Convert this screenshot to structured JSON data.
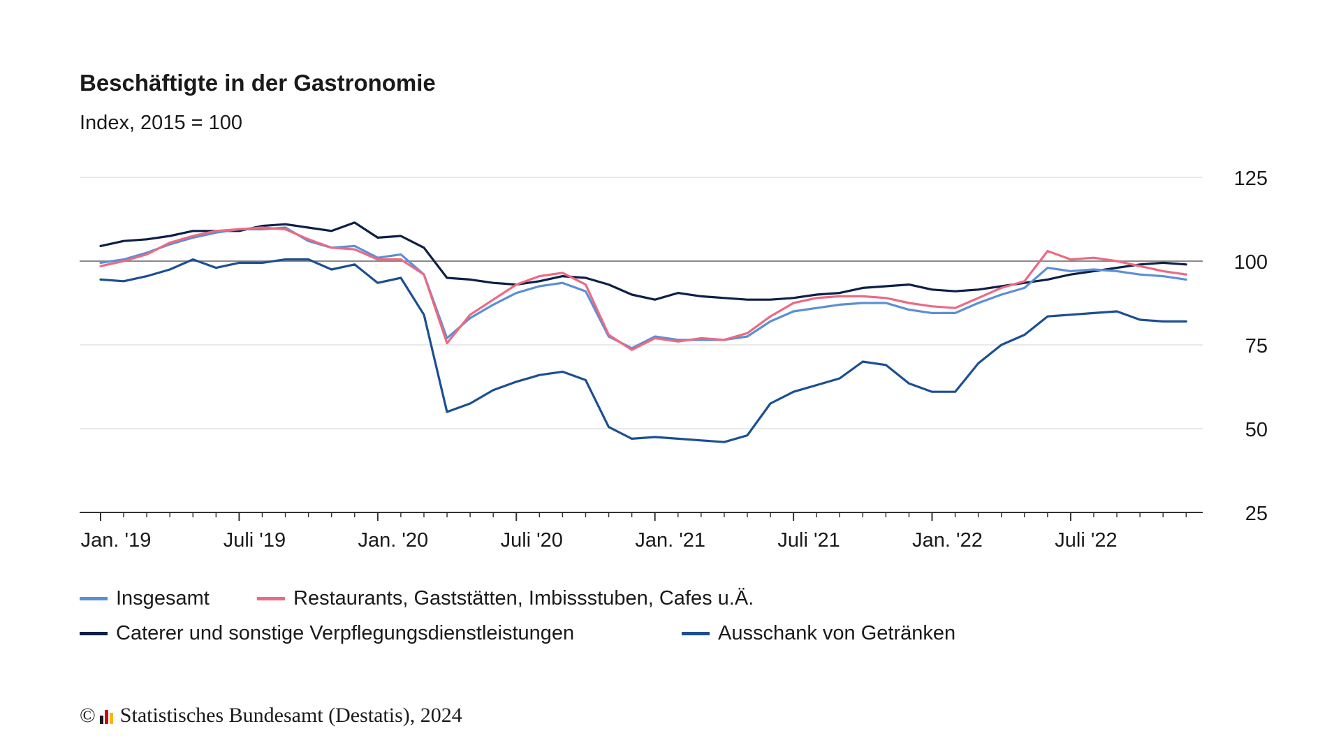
{
  "chart_data": {
    "type": "line",
    "title": "Beschäftigte in der Gastronomie",
    "subtitle": "Index, 2015 = 100",
    "xlabel": "",
    "ylabel": "",
    "ylim": [
      25,
      125
    ],
    "yticks": [
      25,
      50,
      75,
      100,
      125
    ],
    "reference_line": 100,
    "grid": true,
    "legend_position": "bottom",
    "x_months": [
      "2019-01",
      "2019-02",
      "2019-03",
      "2019-04",
      "2019-05",
      "2019-06",
      "2019-07",
      "2019-08",
      "2019-09",
      "2019-10",
      "2019-11",
      "2019-12",
      "2020-01",
      "2020-02",
      "2020-03",
      "2020-04",
      "2020-05",
      "2020-06",
      "2020-07",
      "2020-08",
      "2020-09",
      "2020-10",
      "2020-11",
      "2020-12",
      "2021-01",
      "2021-02",
      "2021-03",
      "2021-04",
      "2021-05",
      "2021-06",
      "2021-07",
      "2021-08",
      "2021-09",
      "2021-10",
      "2021-11",
      "2021-12",
      "2022-01",
      "2022-02",
      "2022-03",
      "2022-04",
      "2022-05",
      "2022-06",
      "2022-07",
      "2022-08",
      "2022-09",
      "2022-10",
      "2022-11",
      "2022-12"
    ],
    "x_tick_labels": [
      {
        "index": 0,
        "label": "Jan. '19"
      },
      {
        "index": 6,
        "label": "Juli '19"
      },
      {
        "index": 12,
        "label": "Jan. '20"
      },
      {
        "index": 18,
        "label": "Juli '20"
      },
      {
        "index": 24,
        "label": "Jan. '21"
      },
      {
        "index": 30,
        "label": "Juli '21"
      },
      {
        "index": 36,
        "label": "Jan. '22"
      },
      {
        "index": 42,
        "label": "Juli '22"
      }
    ],
    "series": [
      {
        "name": "Insgesamt",
        "color": "#5b8fd6",
        "values": [
          99.5,
          100.5,
          102.5,
          105,
          107,
          108.5,
          109.5,
          109.5,
          110,
          106,
          104,
          104.5,
          101,
          102,
          96,
          77,
          83,
          87,
          90.5,
          92.5,
          93.5,
          91,
          77.5,
          74,
          77.5,
          76.5,
          76.5,
          76.5,
          77.5,
          82,
          85,
          86,
          87,
          87.5,
          87.5,
          85.5,
          84.5,
          84.5,
          87.5,
          90,
          92,
          98,
          97,
          97.5,
          97,
          96,
          95.5,
          94.5
        ]
      },
      {
        "name": "Restaurants, Gaststätten, Imbissstuben, Cafes u.Ä.",
        "color": "#ec6a82",
        "values": [
          98.5,
          100,
          102,
          105.5,
          107.5,
          109,
          109.5,
          110,
          109.5,
          106.5,
          104,
          103.5,
          100.5,
          100.5,
          96,
          75.5,
          84,
          88.5,
          93,
          95.5,
          96.5,
          93,
          78,
          73.5,
          77,
          76,
          77,
          76.5,
          78.5,
          83.5,
          87.5,
          89,
          89.5,
          89.5,
          89,
          87.5,
          86.5,
          86,
          89,
          92,
          94,
          103,
          100.5,
          101,
          100,
          98.5,
          97,
          96
        ]
      },
      {
        "name": "Caterer und sonstige Verpflegungsdienstleistungen",
        "color": "#0d1f45",
        "values": [
          104.5,
          106,
          106.5,
          107.5,
          109,
          109,
          109,
          110.5,
          111,
          110,
          109,
          111.5,
          107,
          107.5,
          104,
          95,
          94.5,
          93.5,
          93,
          94,
          95.5,
          95,
          93,
          90,
          88.5,
          90.5,
          89.5,
          89,
          88.5,
          88.5,
          89,
          90,
          90.5,
          92,
          92.5,
          93,
          91.5,
          91,
          91.5,
          92.5,
          93.5,
          94.5,
          96,
          97,
          98,
          99,
          99.5,
          99
        ]
      },
      {
        "name": "Ausschank von Getränken",
        "color": "#1b4f93",
        "values": [
          94.5,
          94,
          95.5,
          97.5,
          100.5,
          98,
          99.5,
          99.5,
          100.5,
          100.5,
          97.5,
          99,
          93.5,
          95,
          84,
          55,
          57.5,
          61.5,
          64,
          66,
          67,
          64.5,
          50.5,
          47,
          47.5,
          47,
          46.5,
          46,
          48,
          57.5,
          61,
          63,
          65,
          70,
          69,
          63.5,
          61,
          61,
          69.5,
          75,
          78,
          83.5,
          84,
          84.5,
          85,
          82.5,
          82,
          82
        ]
      }
    ]
  },
  "footer": {
    "copyright": "©",
    "source": "Statistisches Bundesamt (Destatis), 2024"
  }
}
